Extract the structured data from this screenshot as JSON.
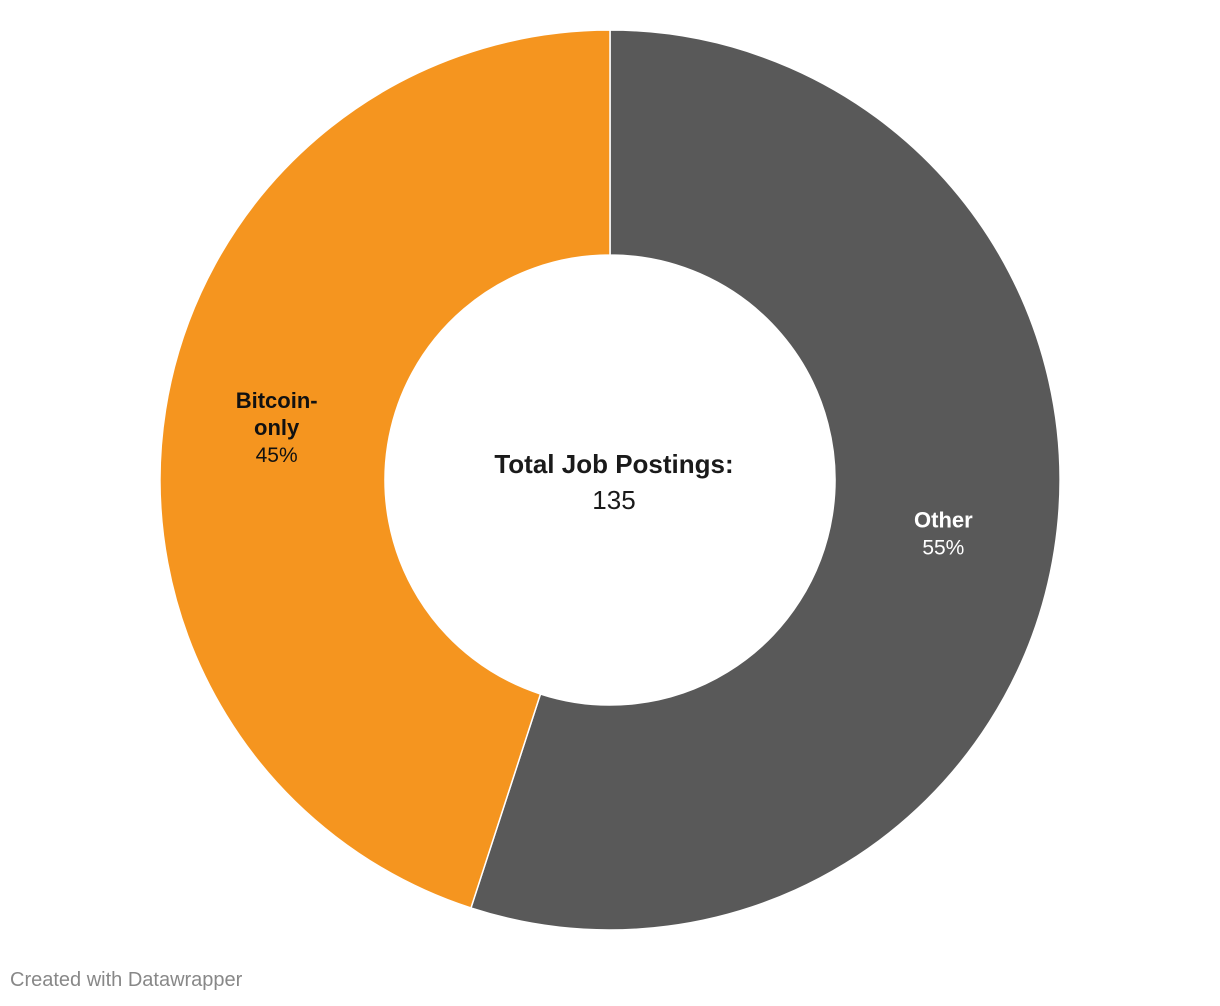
{
  "chart_data": {
    "type": "pie",
    "donut": true,
    "slices": [
      {
        "label_lines": [
          "Bitcoin-",
          "only"
        ],
        "value": 45,
        "value_label": "45%",
        "color": "#f5951f",
        "label_color": "#111111"
      },
      {
        "label_lines": [
          "Other"
        ],
        "value": 55,
        "value_label": "55%",
        "color": "#595959",
        "label_color": "#ffffff"
      }
    ],
    "center_title": "Total Job Postings:",
    "center_value": "135"
  },
  "footer": {
    "credit": "Created with Datawrapper"
  }
}
